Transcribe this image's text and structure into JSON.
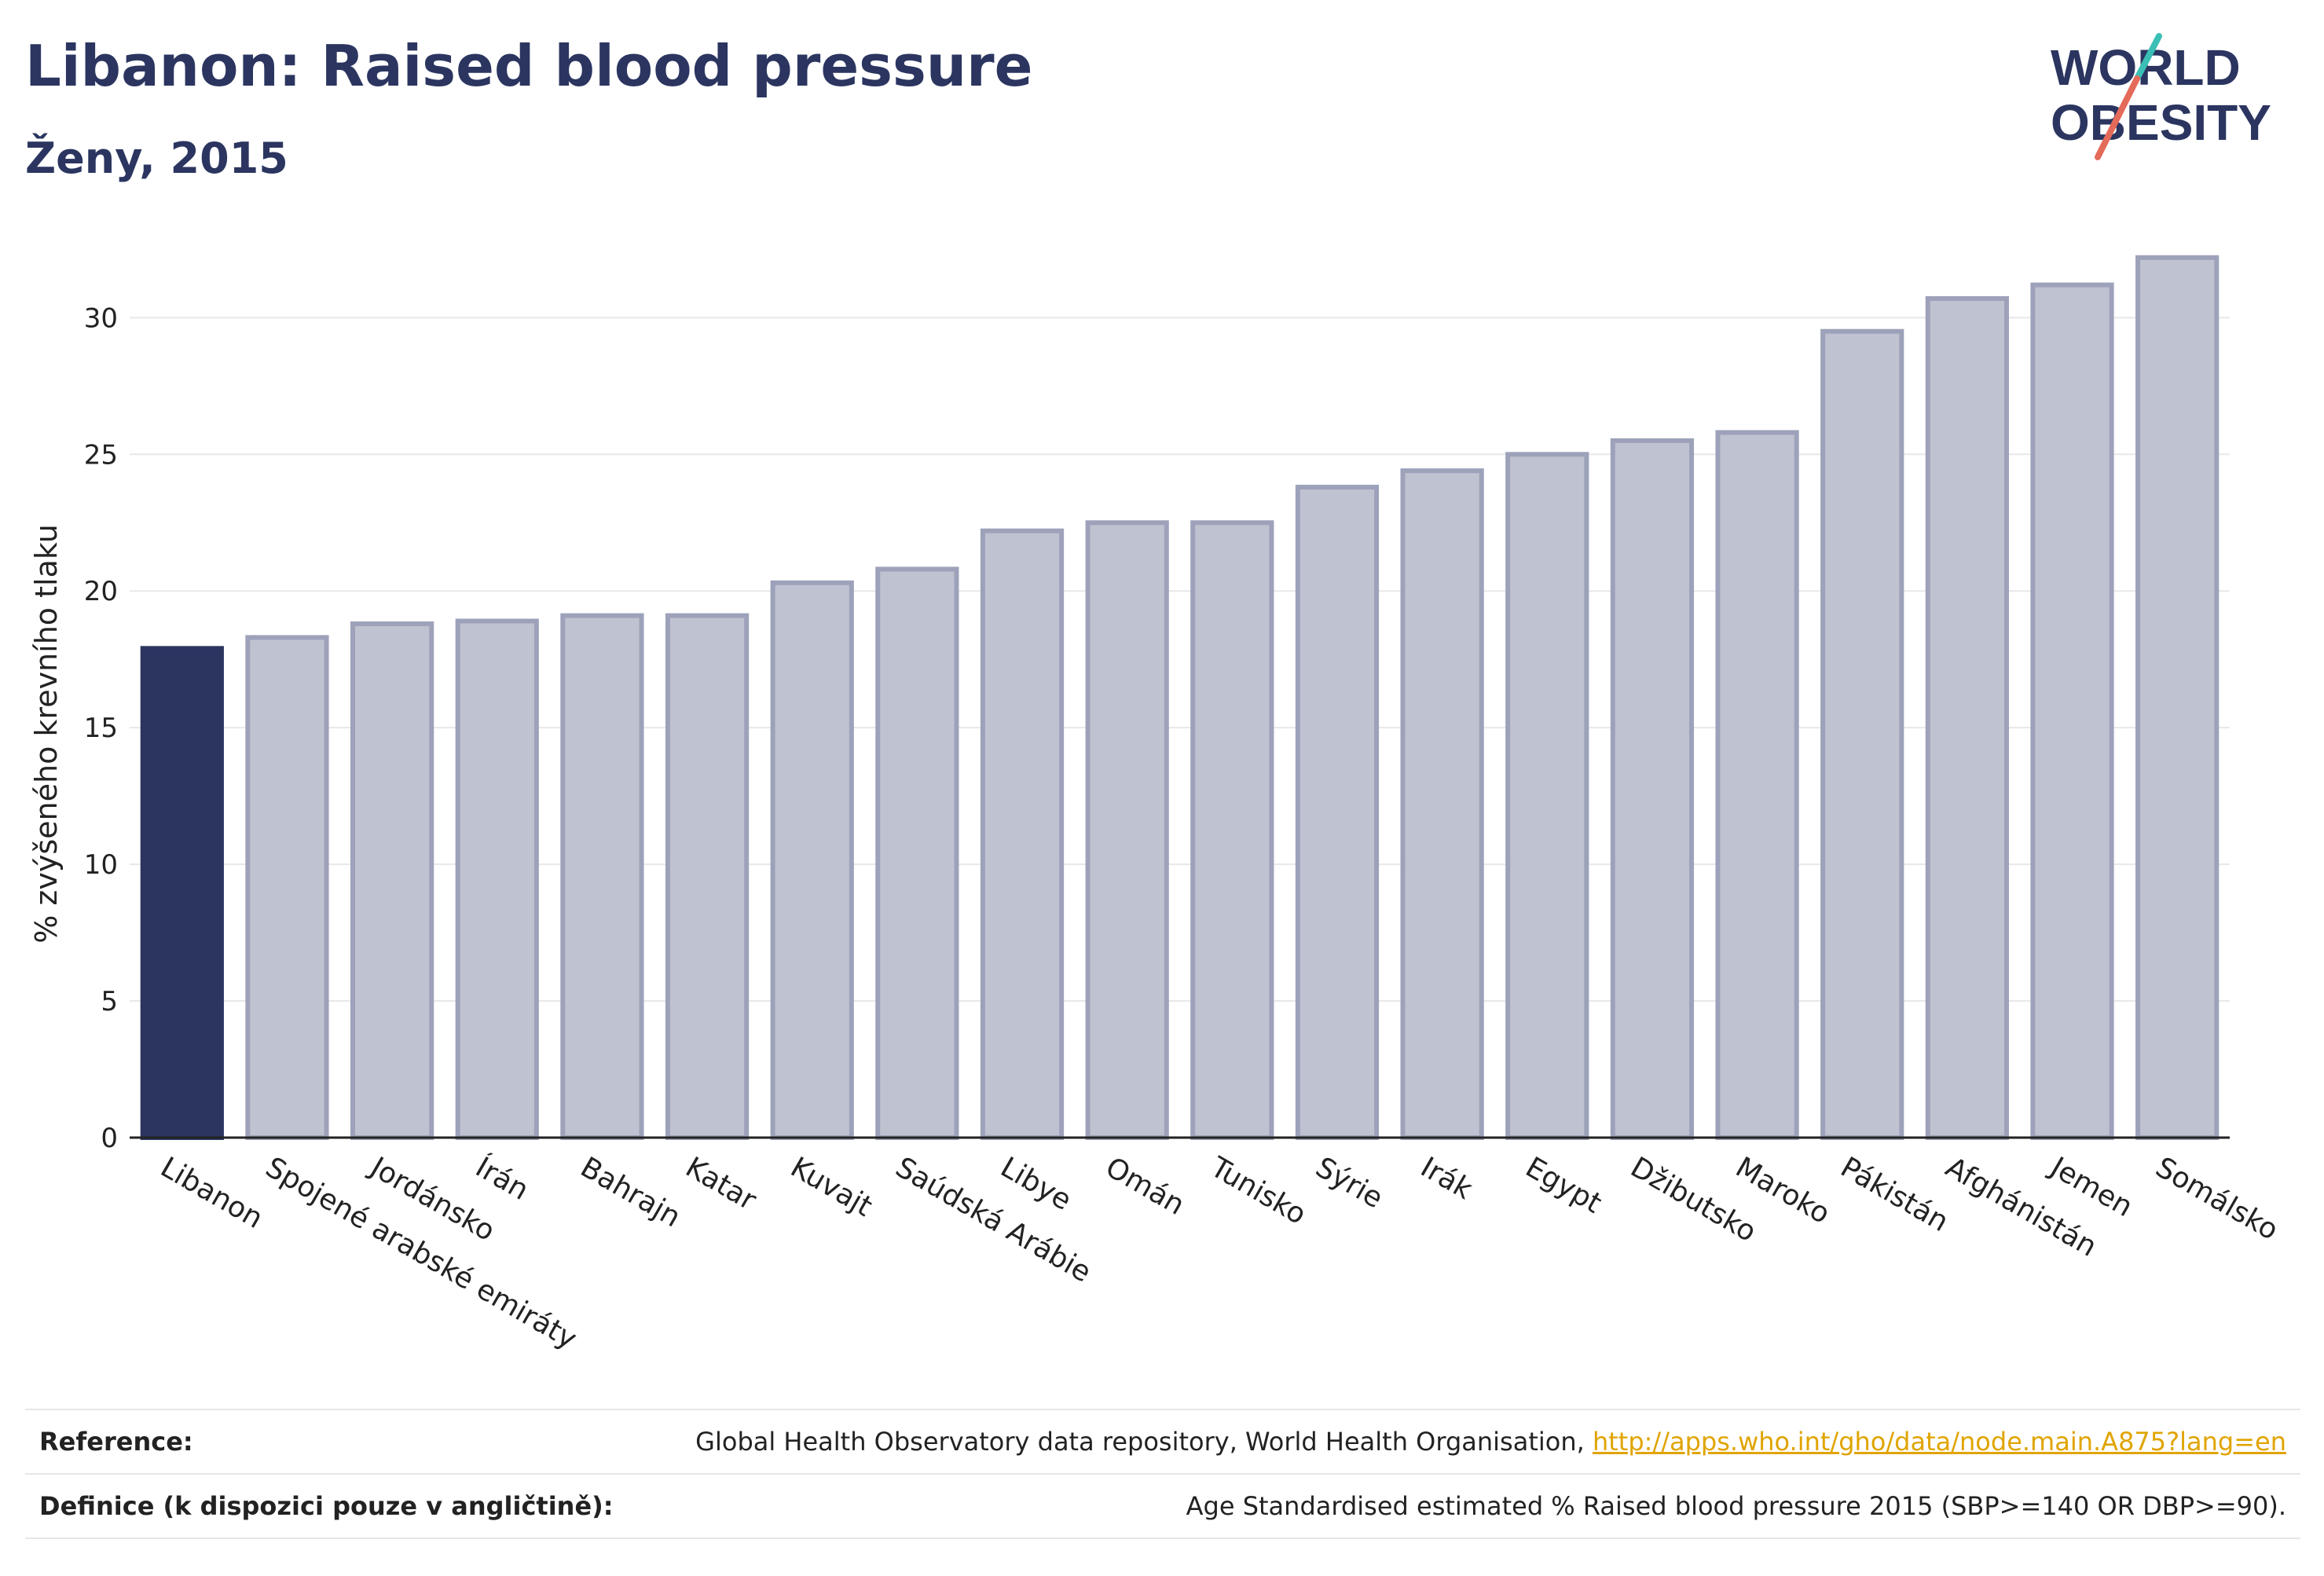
{
  "header": {
    "title": "Libanon: Raised blood pressure",
    "subtitle": "Ženy, 2015"
  },
  "logo": {
    "line1": "WORLD",
    "line2": "OBESITY",
    "accent_colors": [
      "#3bbfb5",
      "#e46b5a"
    ]
  },
  "chart_data": {
    "type": "bar",
    "ylabel": "% zvýšeného krevního tlaku",
    "xlabel": "",
    "ylim": [
      0,
      33
    ],
    "yticks": [
      0,
      5,
      10,
      15,
      20,
      25,
      30
    ],
    "grid": true,
    "highlight_index": 0,
    "colors": {
      "highlight": "#2b3560",
      "bar_fill": "#bfc2d0",
      "bar_stroke": "#9da2ba"
    },
    "categories": [
      "Libanon",
      "Spojené arabské emiráty",
      "Jordánsko",
      "Írán",
      "Bahrajn",
      "Katar",
      "Kuvajt",
      "Saúdská Arábie",
      "Libye",
      "Omán",
      "Tunisko",
      "Sýrie",
      "Irák",
      "Egypt",
      "Džibutsko",
      "Maroko",
      "Pákistán",
      "Afghánistán",
      "Jemen",
      "Somálsko"
    ],
    "values": [
      17.9,
      18.3,
      18.8,
      18.9,
      19.1,
      19.1,
      20.3,
      20.8,
      22.2,
      22.5,
      22.5,
      23.8,
      24.4,
      25.0,
      25.5,
      25.8,
      29.5,
      30.7,
      31.2,
      32.2
    ]
  },
  "footer": {
    "reference_label": "Reference:",
    "reference_text": "Global Health Observatory data repository, World Health Organisation, ",
    "reference_link": "http://apps.who.int/gho/data/node.main.A875?lang=en",
    "definition_label": "Definice (k dispozici pouze v angličtině):",
    "definition_text": "Age Standardised estimated % Raised blood pressure 2015 (SBP>=140 OR DBP>=90)."
  }
}
